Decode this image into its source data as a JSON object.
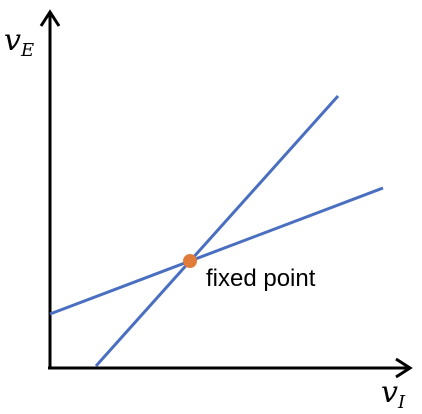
{
  "diagram": {
    "y_axis_label": {
      "main": "v",
      "sub": "E"
    },
    "x_axis_label": {
      "main": "v",
      "sub": "I"
    },
    "annotation": "fixed point",
    "colors": {
      "axes": "#000000",
      "lines": "#4a6fc0",
      "fixed_point": "#e07b39"
    }
  }
}
